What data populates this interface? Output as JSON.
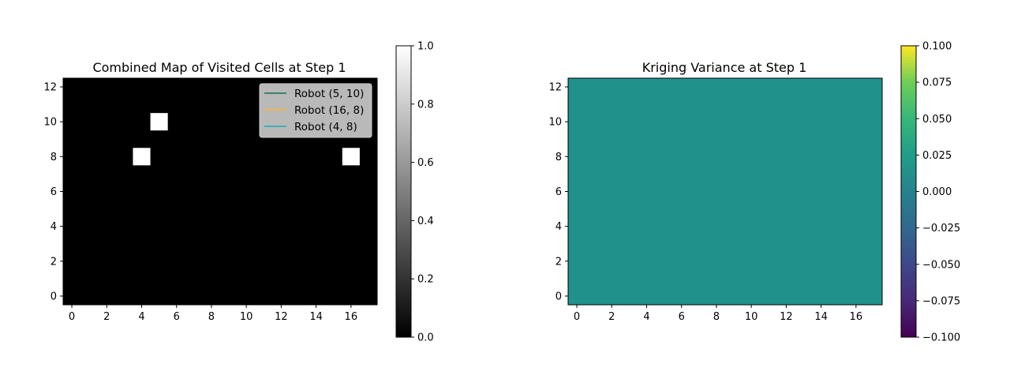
{
  "chart_data": [
    {
      "type": "heatmap",
      "title": "Combined Map of Visited Cells  at Step 1",
      "xlabel": "",
      "ylabel": "",
      "xlim": [
        -0.5,
        17.5
      ],
      "ylim": [
        -0.5,
        12.5
      ],
      "xticks": [
        0,
        2,
        4,
        6,
        8,
        10,
        12,
        14,
        16
      ],
      "yticks": [
        0,
        2,
        4,
        6,
        8,
        10,
        12
      ],
      "grid": false,
      "colormap": "gray",
      "background_value": 0,
      "visited_cells": [
        {
          "x": 5,
          "y": 10,
          "value": 1
        },
        {
          "x": 4,
          "y": 8,
          "value": 1
        },
        {
          "x": 16,
          "y": 8,
          "value": 1
        }
      ],
      "colorbar": {
        "min": 0.0,
        "max": 1.0,
        "ticks": [
          "0.0",
          "0.2",
          "0.4",
          "0.6",
          "0.8",
          "1.0"
        ]
      },
      "legend_position": "top-right",
      "legend": [
        {
          "label": "Robot (5, 10)",
          "color": "#2e7d5b"
        },
        {
          "label": "Robot (16, 8)",
          "color": "#f5b942"
        },
        {
          "label": "Robot (4, 8)",
          "color": "#2bb0b9"
        }
      ]
    },
    {
      "type": "heatmap",
      "title": "Kriging Variance at Step 1",
      "xlabel": "",
      "ylabel": "",
      "xlim": [
        -0.5,
        17.5
      ],
      "ylim": [
        -0.5,
        12.5
      ],
      "xticks": [
        0,
        2,
        4,
        6,
        8,
        10,
        12,
        14,
        16
      ],
      "yticks": [
        0,
        2,
        4,
        6,
        8,
        10,
        12
      ],
      "grid": false,
      "colormap": "viridis",
      "uniform_value": 0.0,
      "fill_color": "#21918c",
      "colorbar": {
        "min": -0.1,
        "max": 0.1,
        "ticks": [
          "−0.100",
          "−0.075",
          "−0.050",
          "−0.025",
          "0.000",
          "0.025",
          "0.050",
          "0.075",
          "0.100"
        ]
      }
    }
  ]
}
